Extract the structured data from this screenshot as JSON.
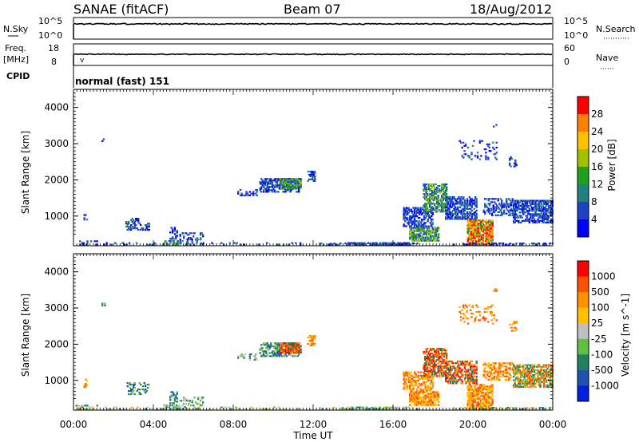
{
  "header": {
    "station": "SANAE (fitACF)",
    "beam": "Beam 07",
    "date": "18/Aug/2012"
  },
  "status_panels": {
    "nsky_label": "N.Sky",
    "nsky_ticks": [
      "10^5",
      "10^0"
    ],
    "nsearch_label": "N.Search",
    "nsearch_ticks": [
      "10^5",
      "10^0"
    ],
    "freq_label": "Freq.",
    "freq_unit": "[MHz]",
    "freq_ticks": [
      "18",
      "8"
    ],
    "nave_label": "Nave",
    "nave_ticks": [
      "60",
      "0"
    ],
    "cpid_label": "CPID",
    "cpid_value": "normal (fast) 151"
  },
  "chart_data": [
    {
      "type": "heatmap",
      "title": "",
      "quantity": "Power",
      "ylabel": "Slant Range [km]",
      "xlabel": "",
      "ylim": [
        180,
        4500
      ],
      "xlim_hours": [
        0,
        24
      ],
      "yticks": [
        "4000",
        "3000",
        "2000",
        "1000"
      ],
      "colorbar": {
        "label": "Power [dB]",
        "ticks": [
          "28",
          "24",
          "20",
          "16",
          "12",
          "8",
          "4"
        ],
        "colors": [
          "#0000ff",
          "#2040c8",
          "#208080",
          "#20a020",
          "#a0c000",
          "#ffc000",
          "#ff8000",
          "#ff0000"
        ]
      }
    },
    {
      "type": "heatmap",
      "title": "",
      "quantity": "Velocity",
      "ylabel": "Slant Range [km]",
      "xlabel": "Time UT",
      "ylim": [
        180,
        4500
      ],
      "xlim_hours": [
        0,
        24
      ],
      "yticks": [
        "4000",
        "3000",
        "2000",
        "1000"
      ],
      "xticks": [
        "00:00",
        "04:00",
        "08:00",
        "12:00",
        "16:00",
        "20:00",
        "00:00"
      ],
      "colorbar": {
        "label": "Velocity [m s^-1]",
        "ticks": [
          "1000",
          "500",
          "100",
          "25",
          "-25",
          "-100",
          "-500",
          "-1000"
        ],
        "colors": [
          "#0020e0",
          "#2050b0",
          "#208060",
          "#60c040",
          "#c0c0c0",
          "#ffc000",
          "#ff9000",
          "#ff5000",
          "#ff0000"
        ]
      }
    }
  ],
  "scatter_regions": [
    {
      "t0": 0.1,
      "t1": 1.2,
      "r0": 190,
      "r1": 330,
      "density": 0.35,
      "pw": "blue",
      "vel": "mixed"
    },
    {
      "t0": 1.2,
      "t1": 11.5,
      "r0": 190,
      "r1": 280,
      "density": 0.12,
      "pw": "blue",
      "vel": "mixed"
    },
    {
      "t0": 4.5,
      "t1": 5.3,
      "r0": 190,
      "r1": 340,
      "density": 0.6,
      "pw": "green",
      "vel": "green"
    },
    {
      "t0": 0.5,
      "t1": 0.7,
      "r0": 800,
      "r1": 1050,
      "density": 0.4,
      "pw": "blue",
      "vel": "orange"
    },
    {
      "t0": 2.6,
      "t1": 3.8,
      "r0": 600,
      "r1": 950,
      "density": 0.35,
      "pw": "blue",
      "vel": "greenblue"
    },
    {
      "t0": 4.8,
      "t1": 5.2,
      "r0": 350,
      "r1": 700,
      "density": 0.35,
      "pw": "blue",
      "vel": "greenblue"
    },
    {
      "t0": 5.3,
      "t1": 6.5,
      "r0": 200,
      "r1": 550,
      "density": 0.3,
      "pw": "blue",
      "vel": "green"
    },
    {
      "t0": 8.2,
      "t1": 9.2,
      "r0": 1550,
      "r1": 1750,
      "density": 0.25,
      "pw": "blue",
      "vel": "green"
    },
    {
      "t0": 9.3,
      "t1": 11.3,
      "r0": 1650,
      "r1": 2050,
      "density": 0.5,
      "pw": "blue",
      "vel": "greenblue"
    },
    {
      "t0": 10.3,
      "t1": 11.4,
      "r0": 1750,
      "r1": 2050,
      "density": 0.75,
      "pw": "greenhi",
      "vel": "red"
    },
    {
      "t0": 11.7,
      "t1": 12.1,
      "r0": 1950,
      "r1": 2250,
      "density": 0.6,
      "pw": "blue",
      "vel": "orange"
    },
    {
      "t0": 12.3,
      "t1": 17.3,
      "r0": 190,
      "r1": 260,
      "density": 0.25,
      "pw": "blue",
      "vel": "mixed"
    },
    {
      "t0": 13.7,
      "t1": 16.8,
      "r0": 190,
      "r1": 280,
      "density": 0.55,
      "pw": "blue",
      "vel": "green"
    },
    {
      "t0": 16.8,
      "t1": 18.3,
      "r0": 300,
      "r1": 700,
      "density": 0.7,
      "pw": "greenhi",
      "vel": "orange"
    },
    {
      "t0": 16.5,
      "t1": 18.0,
      "r0": 700,
      "r1": 1250,
      "density": 0.55,
      "pw": "blue",
      "vel": "orange"
    },
    {
      "t0": 17.5,
      "t1": 18.7,
      "r0": 1100,
      "r1": 1900,
      "density": 0.65,
      "pw": "greenhi",
      "vel": "red"
    },
    {
      "t0": 18.6,
      "t1": 20.2,
      "r0": 900,
      "r1": 1550,
      "density": 0.6,
      "pw": "blue",
      "vel": "red"
    },
    {
      "t0": 19.7,
      "t1": 21.0,
      "r0": 200,
      "r1": 900,
      "density": 0.7,
      "pw": "red",
      "vel": "orange"
    },
    {
      "t0": 20.5,
      "t1": 22.0,
      "r0": 1000,
      "r1": 1500,
      "density": 0.45,
      "pw": "blue",
      "vel": "orange"
    },
    {
      "t0": 22.0,
      "t1": 24.0,
      "r0": 800,
      "r1": 1450,
      "density": 0.65,
      "pw": "blue",
      "vel": "orangegreen"
    },
    {
      "t0": 19.3,
      "t1": 21.2,
      "r0": 2550,
      "r1": 3100,
      "density": 0.18,
      "pw": "blue",
      "vel": "orange"
    },
    {
      "t0": 21.8,
      "t1": 22.2,
      "r0": 2350,
      "r1": 2650,
      "density": 0.35,
      "pw": "blue",
      "vel": "orange"
    },
    {
      "t0": 1.4,
      "t1": 1.6,
      "r0": 3050,
      "r1": 3150,
      "density": 0.5,
      "pw": "blue",
      "vel": "green"
    },
    {
      "t0": 21.0,
      "t1": 21.2,
      "r0": 3450,
      "r1": 3550,
      "density": 0.5,
      "pw": "blue",
      "vel": "orange"
    },
    {
      "t0": 19.0,
      "t1": 24.0,
      "r0": 190,
      "r1": 260,
      "density": 0.3,
      "pw": "blue",
      "vel": "mixed"
    }
  ]
}
